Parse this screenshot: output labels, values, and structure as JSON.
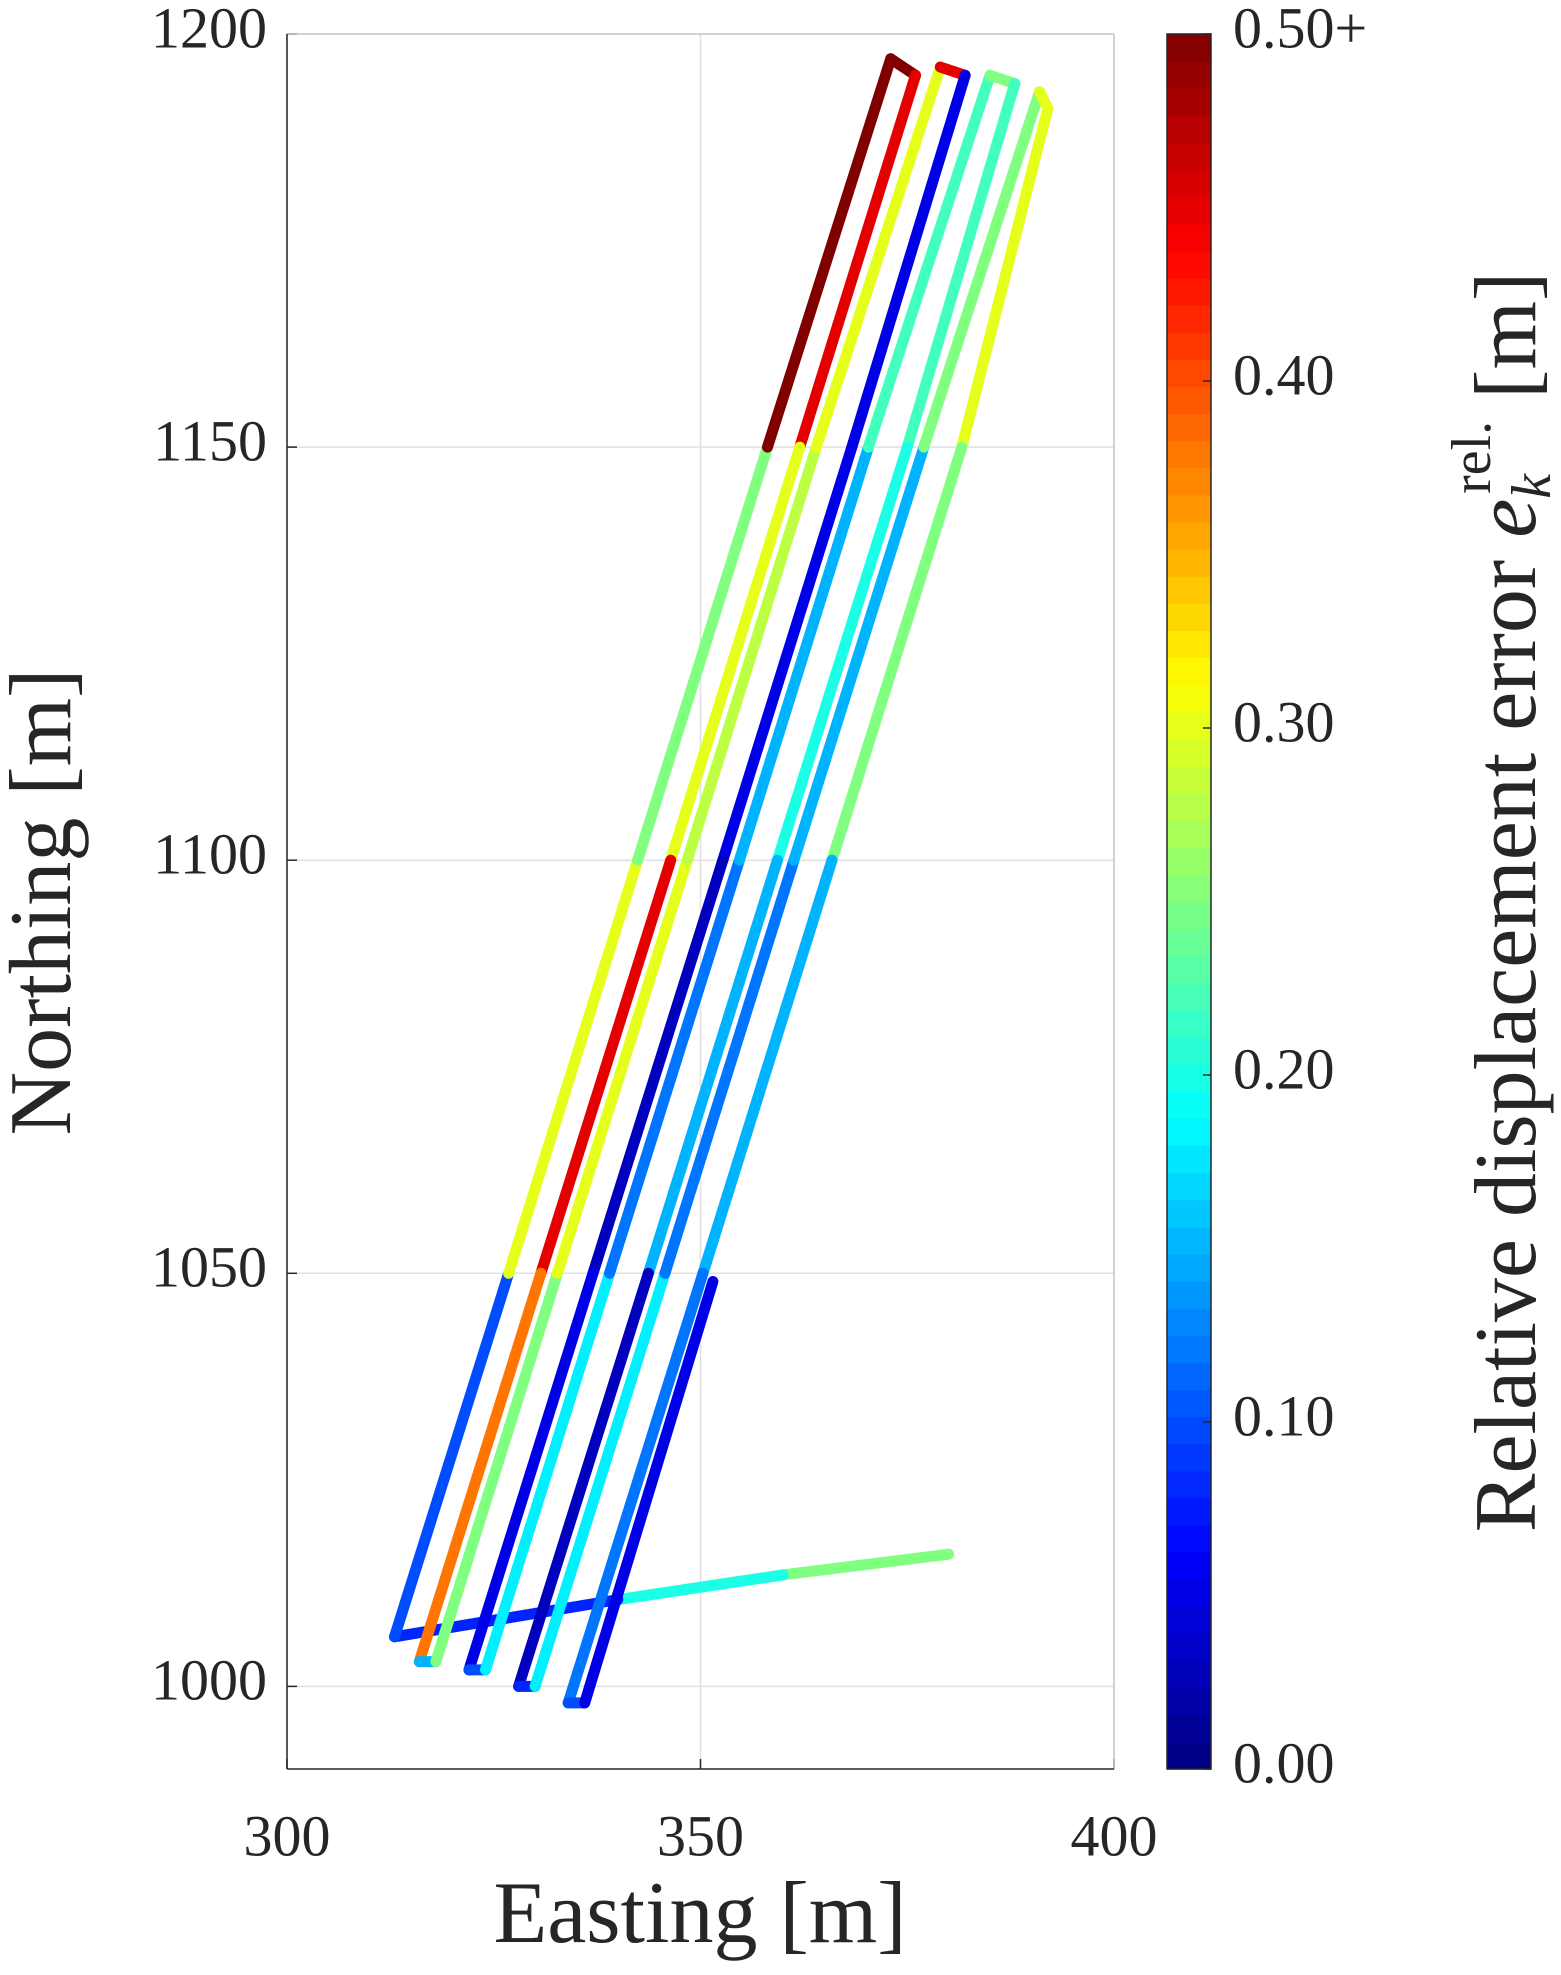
{
  "chart_data": {
    "type": "colored-track",
    "xlabel": "Easting [m]",
    "ylabel": "Northing [m]",
    "colorbar_label": {
      "text": "Relative displacement error",
      "symbol": "e",
      "subscript": "k",
      "superscript": "rel.",
      "unit": "[m]"
    },
    "xlim": [
      300,
      400
    ],
    "xticks": [
      300,
      350,
      400
    ],
    "ylim": [
      990,
      1200
    ],
    "yticks": [
      1000,
      1050,
      1100,
      1150,
      1200
    ],
    "clim": [
      0,
      0.5
    ],
    "cticks": [
      {
        "value": 0,
        "label": "0.00"
      },
      {
        "value": 0.1,
        "label": "0.10"
      },
      {
        "value": 0.2,
        "label": "0.20"
      },
      {
        "value": 0.3,
        "label": "0.30"
      },
      {
        "value": 0.4,
        "label": "0.40"
      },
      {
        "value": 0.5,
        "label": "0.50+"
      }
    ],
    "colormap": "jet",
    "grid": true,
    "x": [
      380,
      360,
      340,
      313,
      326.8,
      342.4,
      358.1,
      373,
      376,
      362,
      346.4,
      330.7,
      316,
      318,
      332.7,
      348.4,
      364,
      379,
      382,
      368.3,
      352.7,
      337,
      322,
      324,
      339,
      354.7,
      370.3,
      385,
      388,
      375,
      359.3,
      343.7,
      328,
      330,
      345.7,
      361.3,
      377,
      391,
      392,
      381.6,
      365.9,
      350.3,
      334,
      336,
      351.5
    ],
    "y": [
      1016,
      1013.5,
      1010.5,
      1006,
      1050,
      1100,
      1150,
      1197,
      1195,
      1150,
      1100,
      1050,
      1003,
      1003,
      1050,
      1100,
      1150,
      1196,
      1195,
      1150,
      1100,
      1050,
      1002,
      1002,
      1050,
      1100,
      1150,
      1195,
      1194,
      1150,
      1100,
      1050,
      1000,
      1000,
      1050,
      1100,
      1150,
      1193,
      1191,
      1150,
      1100,
      1050,
      998,
      998,
      1049
    ],
    "values": [
      0.25,
      0.2,
      0.08,
      0.1,
      0.3,
      0.25,
      0.5,
      0.5,
      0.45,
      0.3,
      0.45,
      0.38,
      0.15,
      0.25,
      0.3,
      0.28,
      0.3,
      0.45,
      0.05,
      0.05,
      0.03,
      0.05,
      0.1,
      0.18,
      0.12,
      0.15,
      0.22,
      0.25,
      0.22,
      0.2,
      0.15,
      0.03,
      0.08,
      0.18,
      0.12,
      0.15,
      0.25,
      0.3,
      0.3,
      0.25,
      0.15,
      0.12,
      0.1,
      0.05,
      0.08
    ]
  }
}
